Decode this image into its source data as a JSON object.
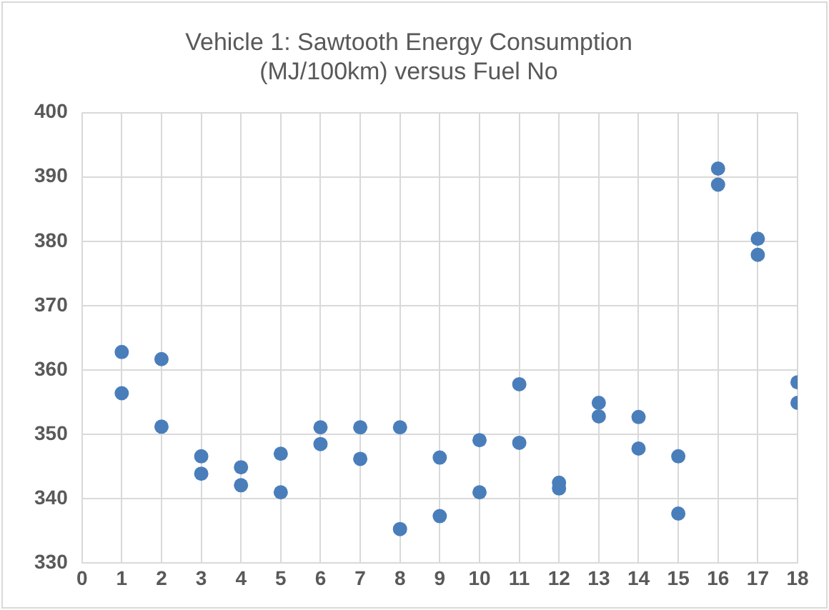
{
  "chart_data": {
    "type": "scatter",
    "title": "Vehicle 1: Sawtooth Energy Consumption (MJ/100km) versus Fuel No",
    "series": [
      {
        "color": "#4a7ebb",
        "x": [
          1,
          1,
          2,
          2,
          3,
          3,
          4,
          4,
          5,
          5,
          6,
          6,
          7,
          7,
          8,
          8,
          9,
          9,
          10,
          10,
          11,
          11,
          12,
          12,
          13,
          13,
          14,
          14,
          15,
          15,
          16,
          16,
          17,
          17,
          18,
          18
        ],
        "values": [
          362.8,
          356.4,
          361.7,
          351.2,
          346.6,
          343.9,
          344.9,
          342.1,
          347.0,
          341.0,
          351.1,
          348.5,
          351.1,
          346.2,
          351.1,
          335.3,
          346.4,
          337.3,
          349.1,
          341.0,
          357.8,
          348.7,
          342.5,
          341.6,
          354.9,
          352.8,
          352.7,
          347.8,
          346.6,
          337.7,
          391.3,
          388.8,
          380.4,
          377.9,
          358.1,
          354.9
        ]
      }
    ],
    "xlim": [
      0,
      18
    ],
    "xticks": [
      0,
      1,
      2,
      3,
      4,
      5,
      6,
      7,
      8,
      9,
      10,
      11,
      12,
      13,
      14,
      15,
      16,
      17,
      18
    ],
    "ylim": [
      330,
      400
    ],
    "yticks": [
      330,
      340,
      350,
      360,
      370,
      380,
      390,
      400
    ],
    "grid": true,
    "legend": false,
    "marker": "circle"
  }
}
